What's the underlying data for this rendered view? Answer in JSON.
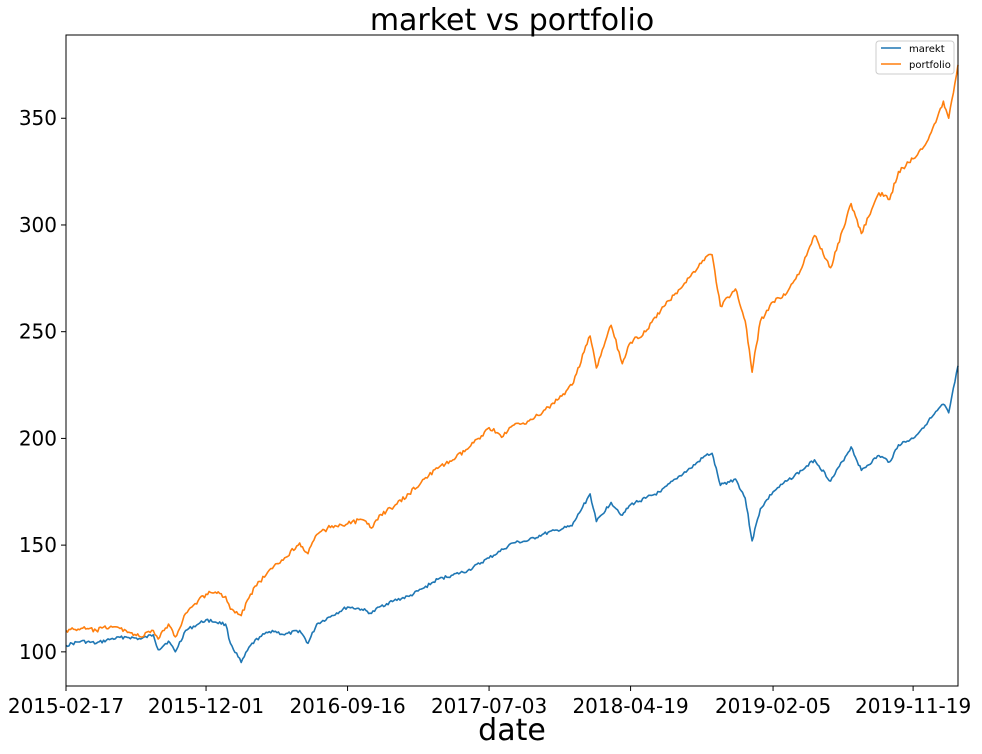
{
  "chart_data": {
    "type": "line",
    "title": "market vs portfolio",
    "xlabel": "date",
    "ylabel": "",
    "x_range": [
      "2015-02-17",
      "2020-02-19"
    ],
    "ylim": [
      84,
      389
    ],
    "x_tick_labels": [
      "2015-02-17",
      "2015-12-01",
      "2016-09-16",
      "2017-07-03",
      "2018-04-19",
      "2019-02-05",
      "2019-11-19"
    ],
    "y_ticks": [
      100,
      150,
      200,
      250,
      300,
      350
    ],
    "grid": false,
    "legend_placement": "top-right",
    "colors": {
      "marekt": "#1f77b4",
      "portfolio": "#ff7f0e"
    },
    "series": [
      {
        "name": "marekt",
        "points": [
          [
            "2015-02-17",
            103
          ],
          [
            "2015-03-20",
            105
          ],
          [
            "2015-04-20",
            104
          ],
          [
            "2015-05-20",
            106
          ],
          [
            "2015-06-20",
            107
          ],
          [
            "2015-07-20",
            106
          ],
          [
            "2015-08-15",
            108
          ],
          [
            "2015-08-25",
            101
          ],
          [
            "2015-09-15",
            105
          ],
          [
            "2015-09-29",
            100
          ],
          [
            "2015-10-20",
            110
          ],
          [
            "2015-11-15",
            113
          ],
          [
            "2015-12-01",
            115
          ],
          [
            "2015-12-20",
            114
          ],
          [
            "2016-01-10",
            113
          ],
          [
            "2016-01-20",
            104
          ],
          [
            "2016-02-11",
            95
          ],
          [
            "2016-03-01",
            103
          ],
          [
            "2016-03-20",
            107
          ],
          [
            "2016-04-15",
            110
          ],
          [
            "2016-05-10",
            108
          ],
          [
            "2016-06-10",
            110
          ],
          [
            "2016-06-27",
            104
          ],
          [
            "2016-07-15",
            113
          ],
          [
            "2016-08-15",
            117
          ],
          [
            "2016-09-16",
            121
          ],
          [
            "2016-10-15",
            120
          ],
          [
            "2016-11-04",
            118
          ],
          [
            "2016-11-20",
            121
          ],
          [
            "2016-12-20",
            124
          ],
          [
            "2017-01-20",
            126
          ],
          [
            "2017-02-20",
            130
          ],
          [
            "2017-03-20",
            134
          ],
          [
            "2017-04-20",
            136
          ],
          [
            "2017-05-20",
            138
          ],
          [
            "2017-07-03",
            144
          ],
          [
            "2017-08-01",
            148
          ],
          [
            "2017-08-20",
            151
          ],
          [
            "2017-09-20",
            152
          ],
          [
            "2017-10-20",
            155
          ],
          [
            "2017-11-20",
            157
          ],
          [
            "2017-12-20",
            159
          ],
          [
            "2018-01-26",
            174
          ],
          [
            "2018-02-08",
            161
          ],
          [
            "2018-03-10",
            170
          ],
          [
            "2018-04-02",
            164
          ],
          [
            "2018-04-19",
            169
          ],
          [
            "2018-05-20",
            172
          ],
          [
            "2018-06-20",
            175
          ],
          [
            "2018-07-20",
            181
          ],
          [
            "2018-08-20",
            186
          ],
          [
            "2018-09-20",
            192
          ],
          [
            "2018-10-03",
            193
          ],
          [
            "2018-10-20",
            178
          ],
          [
            "2018-11-20",
            181
          ],
          [
            "2018-12-10",
            172
          ],
          [
            "2018-12-24",
            152
          ],
          [
            "2019-01-10",
            167
          ],
          [
            "2019-02-05",
            175
          ],
          [
            "2019-03-05",
            180
          ],
          [
            "2019-04-05",
            185
          ],
          [
            "2019-05-01",
            190
          ],
          [
            "2019-06-03",
            180
          ],
          [
            "2019-07-15",
            196
          ],
          [
            "2019-08-05",
            185
          ],
          [
            "2019-09-10",
            192
          ],
          [
            "2019-10-02",
            189
          ],
          [
            "2019-10-20",
            197
          ],
          [
            "2019-11-19",
            200
          ],
          [
            "2019-12-20",
            208
          ],
          [
            "2020-01-20",
            216
          ],
          [
            "2020-01-31",
            212
          ],
          [
            "2020-02-19",
            234
          ]
        ]
      },
      {
        "name": "portfolio",
        "points": [
          [
            "2015-02-17",
            110
          ],
          [
            "2015-03-20",
            111
          ],
          [
            "2015-04-20",
            110
          ],
          [
            "2015-05-20",
            112
          ],
          [
            "2015-06-20",
            110
          ],
          [
            "2015-07-20",
            107
          ],
          [
            "2015-08-15",
            110
          ],
          [
            "2015-08-25",
            106
          ],
          [
            "2015-09-15",
            113
          ],
          [
            "2015-09-29",
            107
          ],
          [
            "2015-10-20",
            118
          ],
          [
            "2015-11-15",
            124
          ],
          [
            "2015-12-01",
            127
          ],
          [
            "2015-12-20",
            128
          ],
          [
            "2016-01-10",
            126
          ],
          [
            "2016-01-20",
            120
          ],
          [
            "2016-02-11",
            117
          ],
          [
            "2016-03-01",
            127
          ],
          [
            "2016-03-20",
            133
          ],
          [
            "2016-04-15",
            139
          ],
          [
            "2016-05-10",
            144
          ],
          [
            "2016-06-10",
            151
          ],
          [
            "2016-06-27",
            146
          ],
          [
            "2016-07-15",
            155
          ],
          [
            "2016-08-15",
            159
          ],
          [
            "2016-09-16",
            160
          ],
          [
            "2016-10-15",
            162
          ],
          [
            "2016-11-04",
            158
          ],
          [
            "2016-11-20",
            164
          ],
          [
            "2016-12-20",
            168
          ],
          [
            "2017-01-20",
            174
          ],
          [
            "2017-02-20",
            181
          ],
          [
            "2017-03-20",
            186
          ],
          [
            "2017-04-20",
            190
          ],
          [
            "2017-05-20",
            195
          ],
          [
            "2017-07-03",
            205
          ],
          [
            "2017-08-01",
            201
          ],
          [
            "2017-08-20",
            206
          ],
          [
            "2017-09-20",
            208
          ],
          [
            "2017-10-20",
            212
          ],
          [
            "2017-11-20",
            218
          ],
          [
            "2017-12-20",
            225
          ],
          [
            "2018-01-26",
            248
          ],
          [
            "2018-02-08",
            233
          ],
          [
            "2018-03-10",
            253
          ],
          [
            "2018-04-02",
            235
          ],
          [
            "2018-04-19",
            245
          ],
          [
            "2018-05-20",
            250
          ],
          [
            "2018-06-20",
            260
          ],
          [
            "2018-07-20",
            268
          ],
          [
            "2018-08-20",
            276
          ],
          [
            "2018-09-20",
            285
          ],
          [
            "2018-10-03",
            286
          ],
          [
            "2018-10-20",
            262
          ],
          [
            "2018-11-20",
            270
          ],
          [
            "2018-12-10",
            255
          ],
          [
            "2018-12-24",
            231
          ],
          [
            "2019-01-10",
            255
          ],
          [
            "2019-02-05",
            264
          ],
          [
            "2019-03-05",
            268
          ],
          [
            "2019-04-05",
            280
          ],
          [
            "2019-05-01",
            295
          ],
          [
            "2019-06-03",
            280
          ],
          [
            "2019-07-15",
            310
          ],
          [
            "2019-08-05",
            296
          ],
          [
            "2019-09-10",
            315
          ],
          [
            "2019-10-02",
            312
          ],
          [
            "2019-10-20",
            325
          ],
          [
            "2019-11-19",
            331
          ],
          [
            "2019-12-20",
            340
          ],
          [
            "2020-01-20",
            358
          ],
          [
            "2020-01-31",
            350
          ],
          [
            "2020-02-19",
            375
          ]
        ]
      }
    ]
  }
}
